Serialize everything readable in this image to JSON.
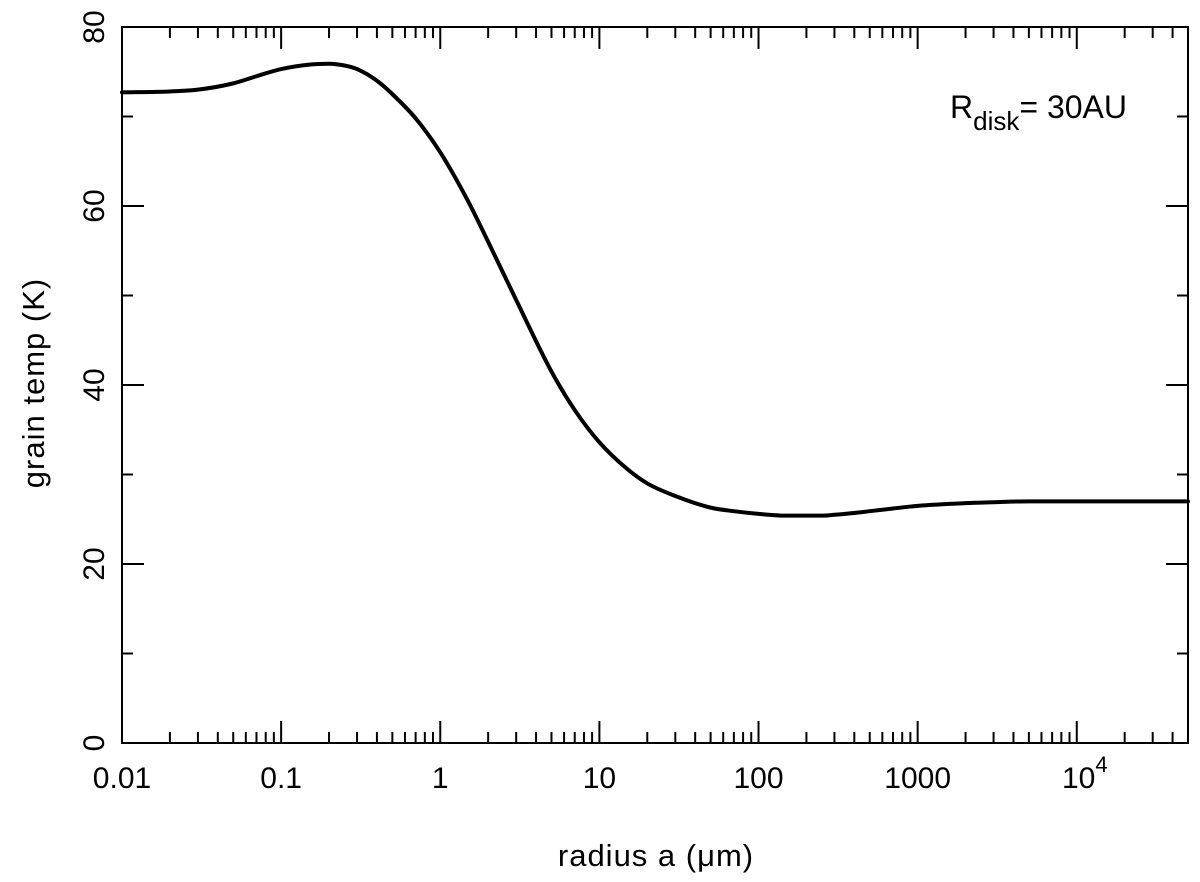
{
  "chart_data": {
    "type": "line",
    "title": "",
    "xlabel": "radius a (μm)",
    "ylabel": "grain temp (K)",
    "x_scale": "log",
    "xlim": [
      0.01,
      50000
    ],
    "ylim": [
      0,
      80
    ],
    "grid": false,
    "x_ticks": [
      {
        "value": 0.01,
        "label": "0.01"
      },
      {
        "value": 0.1,
        "label": "0.1"
      },
      {
        "value": 1,
        "label": "1"
      },
      {
        "value": 10,
        "label": "10"
      },
      {
        "value": 100,
        "label": "100"
      },
      {
        "value": 1000,
        "label": "1000"
      },
      {
        "value": 10000,
        "label": "10",
        "exponent": "4"
      }
    ],
    "y_ticks": [
      0,
      20,
      40,
      60,
      80
    ],
    "annotation": {
      "base": "R",
      "subscript": "disk",
      "text": "= 30AU"
    },
    "series": [
      {
        "color": "#000000",
        "x": [
          0.01,
          0.02,
          0.03,
          0.05,
          0.07,
          0.1,
          0.15,
          0.2,
          0.25,
          0.3,
          0.4,
          0.5,
          0.7,
          1,
          1.5,
          2,
          3,
          5,
          7,
          10,
          15,
          20,
          30,
          50,
          70,
          100,
          150,
          200,
          250,
          300,
          400,
          500,
          700,
          1000,
          2000,
          3000,
          5000,
          10000,
          20000,
          50000
        ],
        "y": [
          72.7,
          72.8,
          73.0,
          73.7,
          74.5,
          75.3,
          75.8,
          75.9,
          75.7,
          75.3,
          74.0,
          72.5,
          69.8,
          66.0,
          60.5,
          56.0,
          49.5,
          41.5,
          37.2,
          33.6,
          30.6,
          29.0,
          27.6,
          26.3,
          25.9,
          25.6,
          25.4,
          25.4,
          25.4,
          25.5,
          25.7,
          25.9,
          26.2,
          26.5,
          26.8,
          26.9,
          27.0,
          27.0,
          27.0,
          27.0
        ]
      }
    ]
  }
}
